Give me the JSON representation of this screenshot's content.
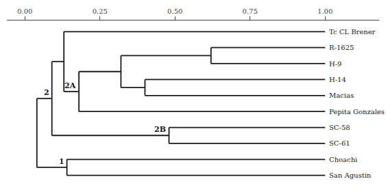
{
  "chart_data": {
    "type": "dendrogram",
    "color": "#1a1a1a",
    "grid": false,
    "xlim": [
      -0.06,
      1.18
    ],
    "xticks": [
      {
        "value": 0.0,
        "label": "0.00"
      },
      {
        "value": 0.25,
        "label": "0.25"
      },
      {
        "value": 0.5,
        "label": "0.50"
      },
      {
        "value": 0.75,
        "label": "0.75"
      },
      {
        "value": 1.0,
        "label": "1.00"
      }
    ],
    "tree": {
      "x": 0.04,
      "children": [
        {
          "x": 0.09,
          "label": "2",
          "children": [
            {
              "x": 0.13,
              "children": [
                {
                  "name": "Tc CL Brener",
                  "x": 1.0
                },
                {
                  "x": 0.18,
                  "label": "2A",
                  "children": [
                    {
                      "x": 0.32,
                      "children": [
                        {
                          "x": 0.62,
                          "children": [
                            {
                              "name": "R-1625",
                              "x": 1.0
                            },
                            {
                              "name": "H-9",
                              "x": 1.0
                            }
                          ]
                        },
                        {
                          "x": 0.4,
                          "children": [
                            {
                              "name": "H-14",
                              "x": 1.0
                            },
                            {
                              "name": "Macias",
                              "x": 1.0
                            }
                          ]
                        }
                      ]
                    },
                    {
                      "name": "Pepita Gonzales",
                      "x": 1.0
                    }
                  ]
                }
              ]
            },
            {
              "x": 0.48,
              "label": "2B",
              "children": [
                {
                  "name": "SC-58",
                  "x": 1.0
                },
                {
                  "name": "SC-61",
                  "x": 1.0
                }
              ]
            }
          ]
        },
        {
          "x": 0.14,
          "label": "1",
          "children": [
            {
              "name": "Choachi",
              "x": 1.0
            },
            {
              "name": "San Agustin",
              "x": 1.0
            }
          ]
        }
      ]
    }
  }
}
